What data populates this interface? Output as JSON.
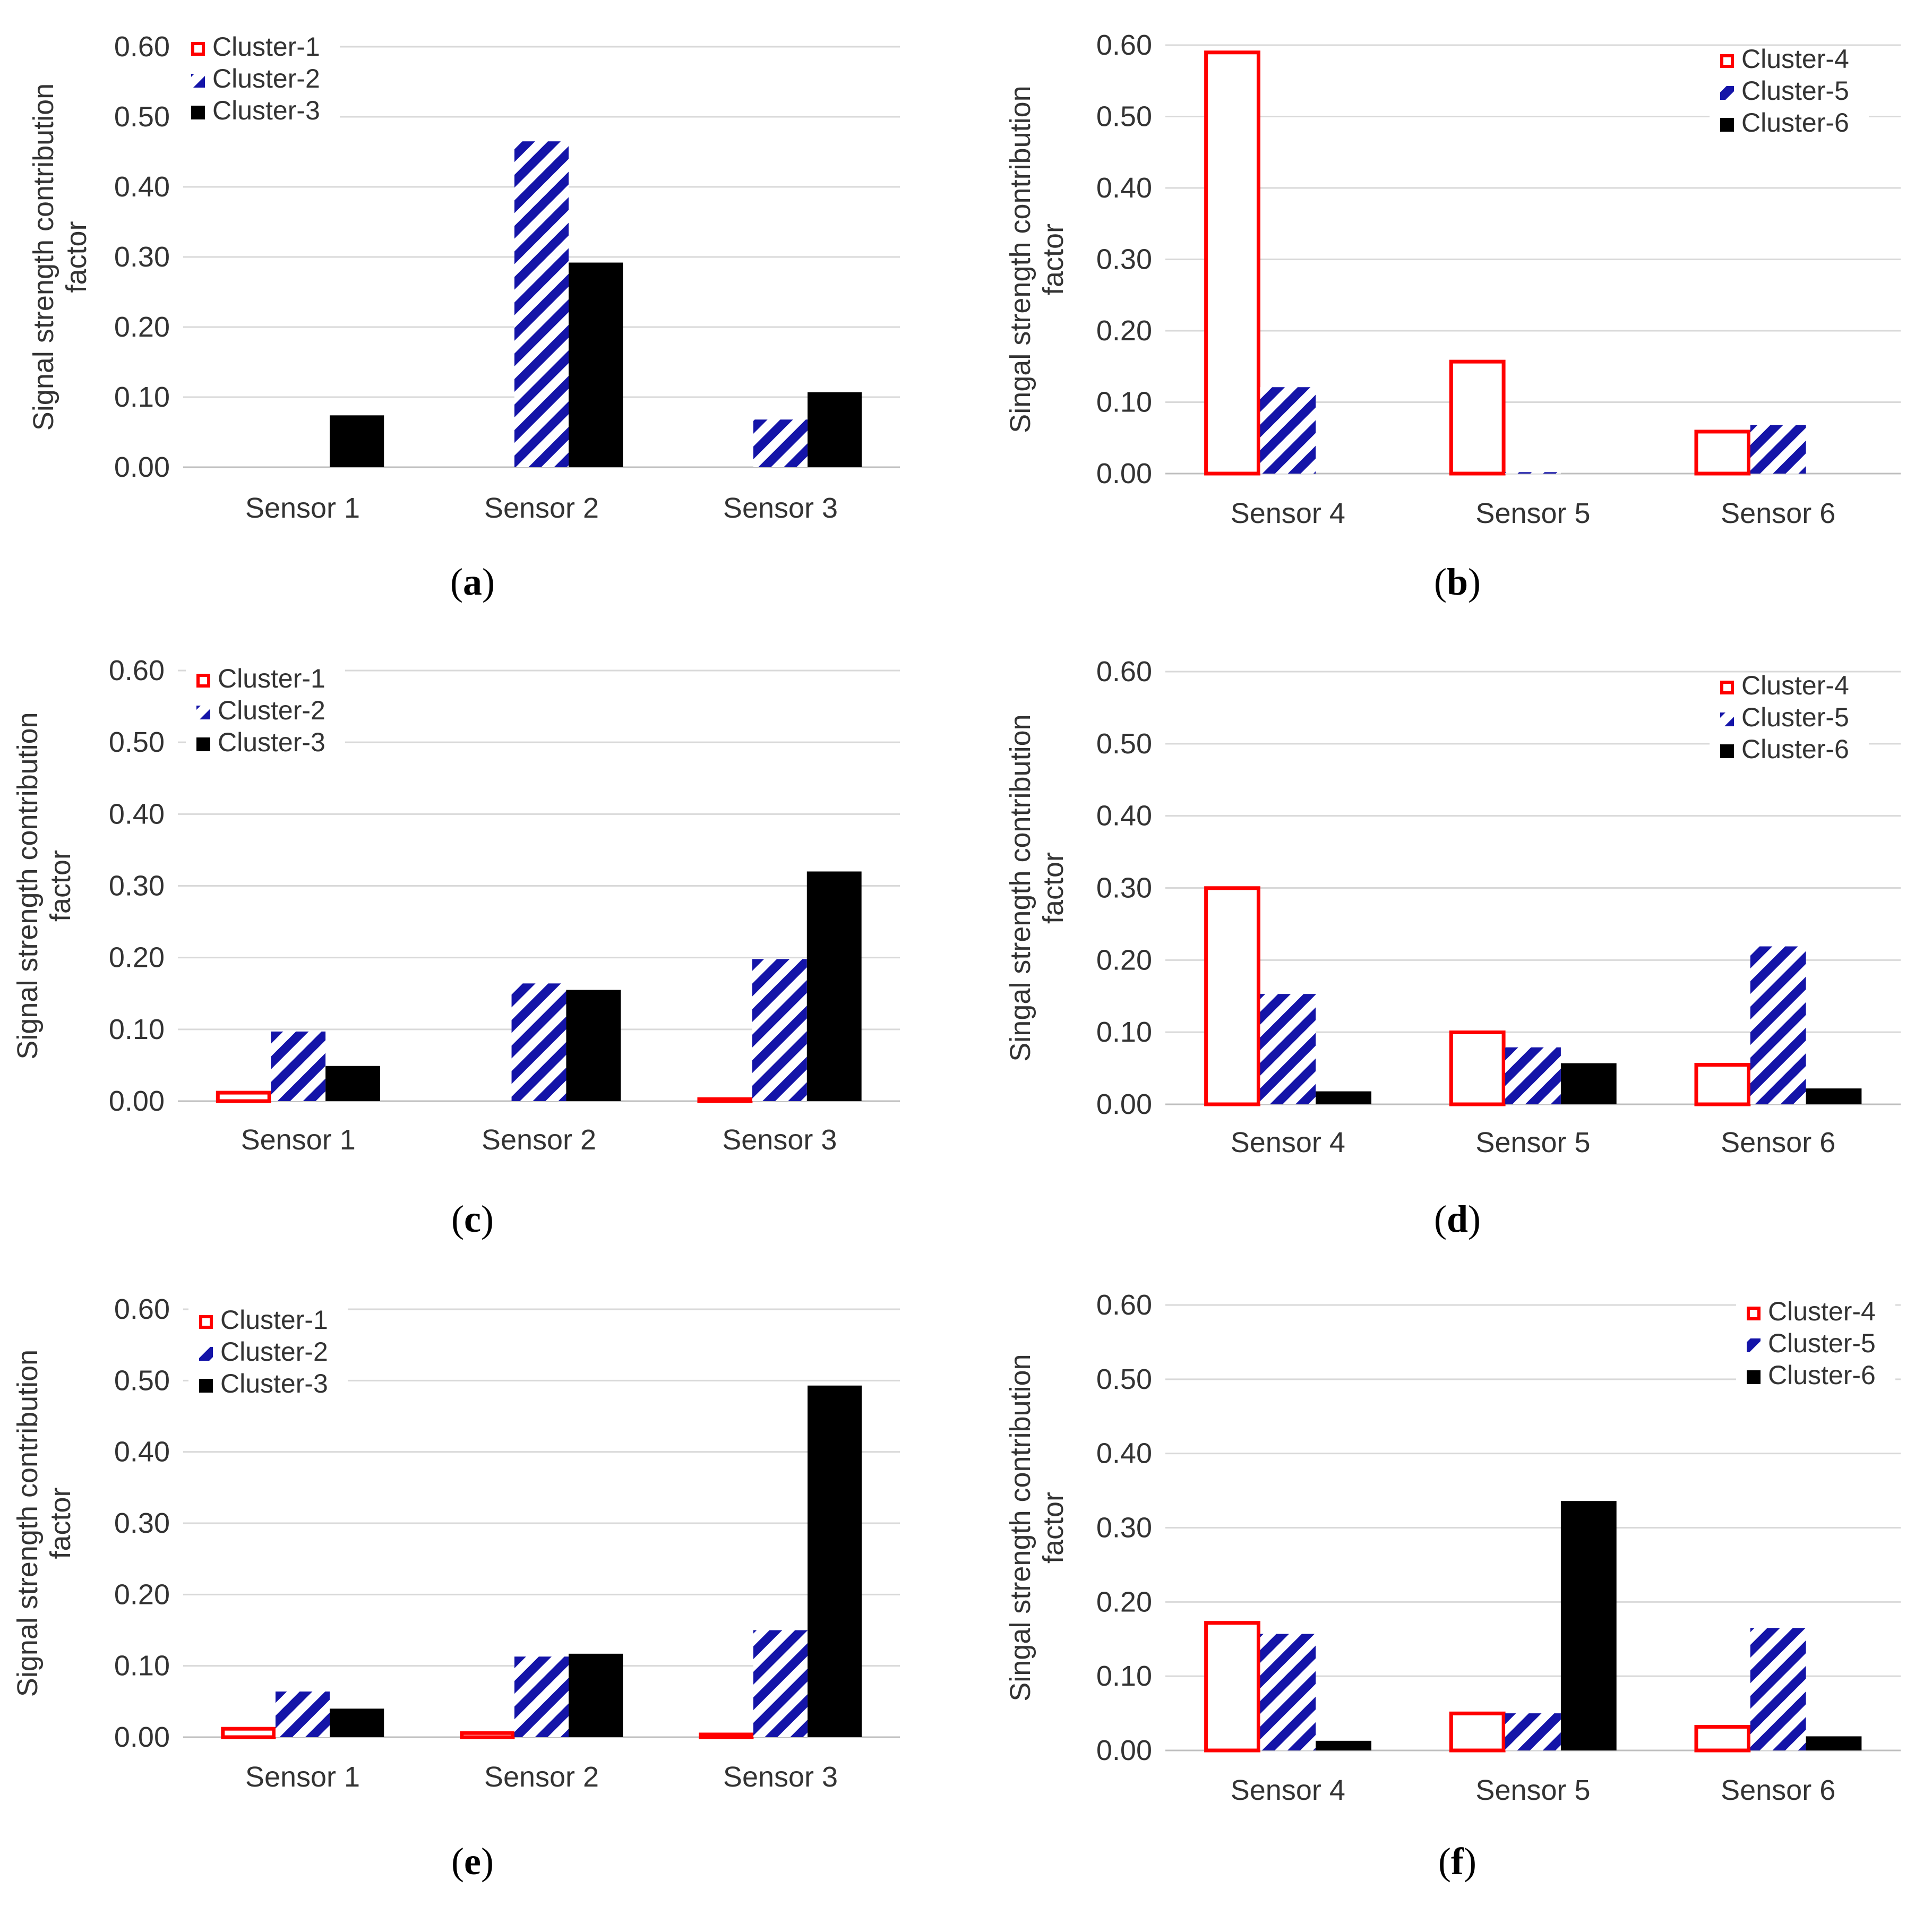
{
  "colors": {
    "cluster_a": "#ff0000",
    "cluster_b": "#1414a8",
    "cluster_c": "#000000"
  },
  "chart_data": [
    {
      "type": "bar",
      "panel": "a",
      "ylabel": "Signal strength contribution factor",
      "ylim": [
        0,
        0.6
      ],
      "yticks": [
        "0.00",
        "0.10",
        "0.20",
        "0.30",
        "0.40",
        "0.50",
        "0.60"
      ],
      "categories": [
        "Sensor 1",
        "Sensor 2",
        "Sensor 3"
      ],
      "series": [
        {
          "name": "Cluster-1",
          "style": "outline",
          "values": [
            0.0,
            0.0,
            0.0
          ]
        },
        {
          "name": "Cluster-2",
          "style": "hatch",
          "values": [
            0.0,
            0.465,
            0.068
          ]
        },
        {
          "name": "Cluster-3",
          "style": "solid",
          "values": [
            0.074,
            0.292,
            0.107
          ]
        }
      ],
      "legend": "top-left"
    },
    {
      "type": "bar",
      "panel": "b",
      "ylabel": "Singal strength contribution factor",
      "ylim": [
        0,
        0.6
      ],
      "yticks": [
        "0.00",
        "0.10",
        "0.20",
        "0.30",
        "0.40",
        "0.50",
        "0.60"
      ],
      "categories": [
        "Sensor 4",
        "Sensor 5",
        "Sensor 6"
      ],
      "series": [
        {
          "name": "Cluster-4",
          "style": "outline",
          "values": [
            0.592,
            0.159,
            0.061
          ]
        },
        {
          "name": "Cluster-5",
          "style": "hatch",
          "values": [
            0.121,
            0.002,
            0.068
          ]
        },
        {
          "name": "Cluster-6",
          "style": "solid",
          "values": [
            0.0,
            0.0,
            0.0
          ]
        }
      ],
      "legend": "top-right"
    },
    {
      "type": "bar",
      "panel": "c",
      "ylabel": "Signal strength contribution factor",
      "ylim": [
        0,
        0.6
      ],
      "yticks": [
        "0.00",
        "0.10",
        "0.20",
        "0.30",
        "0.40",
        "0.50",
        "0.60"
      ],
      "categories": [
        "Sensor 1",
        "Sensor 2",
        "Sensor 3"
      ],
      "series": [
        {
          "name": "Cluster-1",
          "style": "outline",
          "values": [
            0.014,
            0.0,
            0.005
          ]
        },
        {
          "name": "Cluster-2",
          "style": "hatch",
          "values": [
            0.097,
            0.164,
            0.198
          ]
        },
        {
          "name": "Cluster-3",
          "style": "solid",
          "values": [
            0.049,
            0.155,
            0.32
          ]
        }
      ],
      "legend": "top-left"
    },
    {
      "type": "bar",
      "panel": "d",
      "ylabel": "Singal strength contribution factor",
      "ylim": [
        0,
        0.6
      ],
      "yticks": [
        "0.00",
        "0.10",
        "0.20",
        "0.30",
        "0.40",
        "0.50",
        "0.60"
      ],
      "categories": [
        "Sensor 4",
        "Sensor 5",
        "Sensor 6"
      ],
      "series": [
        {
          "name": "Cluster-4",
          "style": "outline",
          "values": [
            0.302,
            0.102,
            0.057
          ]
        },
        {
          "name": "Cluster-5",
          "style": "hatch",
          "values": [
            0.153,
            0.079,
            0.219
          ]
        },
        {
          "name": "Cluster-6",
          "style": "solid",
          "values": [
            0.018,
            0.057,
            0.022
          ]
        }
      ],
      "legend": "top-right"
    },
    {
      "type": "bar",
      "panel": "e",
      "ylabel": "Signal strength contribution factor",
      "ylim": [
        0,
        0.6
      ],
      "yticks": [
        "0.00",
        "0.10",
        "0.20",
        "0.30",
        "0.40",
        "0.50",
        "0.60"
      ],
      "categories": [
        "Sensor 1",
        "Sensor 2",
        "Sensor 3"
      ],
      "series": [
        {
          "name": "Cluster-1",
          "style": "outline",
          "values": [
            0.014,
            0.008,
            0.006
          ]
        },
        {
          "name": "Cluster-2",
          "style": "hatch",
          "values": [
            0.064,
            0.113,
            0.15
          ]
        },
        {
          "name": "Cluster-3",
          "style": "solid",
          "values": [
            0.04,
            0.117,
            0.493
          ]
        }
      ],
      "legend": "top-left"
    },
    {
      "type": "bar",
      "panel": "f",
      "ylabel": "Singal strength contribution factor",
      "ylim": [
        0,
        0.6
      ],
      "yticks": [
        "0.00",
        "0.10",
        "0.20",
        "0.30",
        "0.40",
        "0.50",
        "0.60"
      ],
      "categories": [
        "Sensor 4",
        "Sensor 5",
        "Sensor 6"
      ],
      "series": [
        {
          "name": "Cluster-4",
          "style": "outline",
          "values": [
            0.174,
            0.052,
            0.034
          ]
        },
        {
          "name": "Cluster-5",
          "style": "hatch",
          "values": [
            0.157,
            0.05,
            0.165
          ]
        },
        {
          "name": "Cluster-6",
          "style": "solid",
          "values": [
            0.013,
            0.336,
            0.019
          ]
        }
      ],
      "legend": "top-right"
    }
  ]
}
